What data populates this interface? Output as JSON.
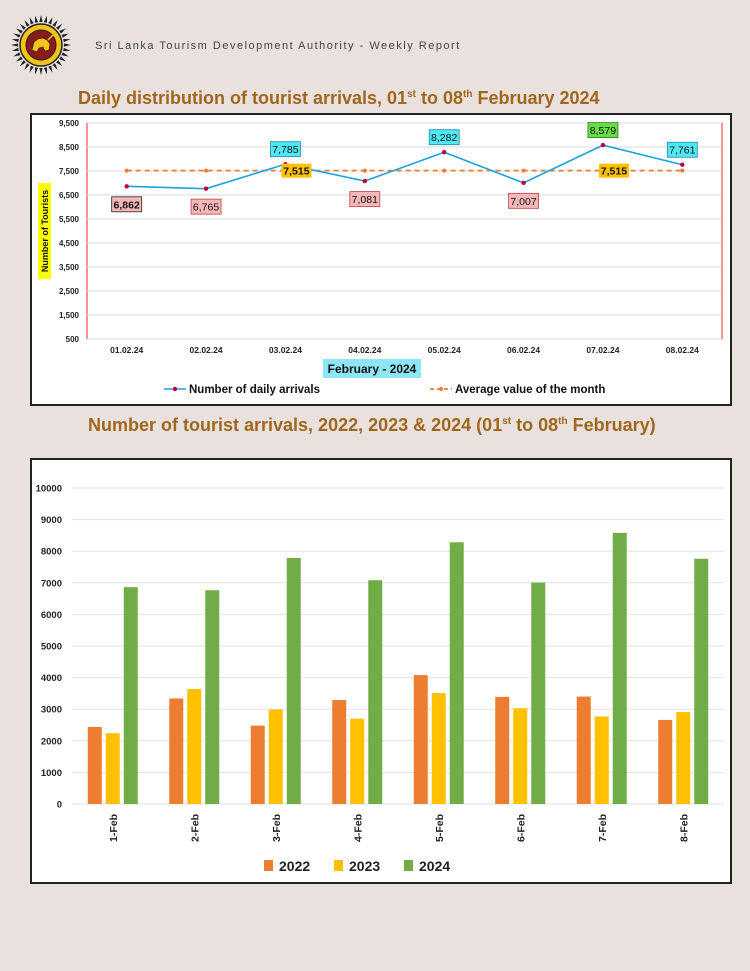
{
  "header": {
    "org_text": "Sri Lanka Tourism Development Authority - Weekly Report",
    "logo_icon": "sri-lanka-lion-emblem-icon"
  },
  "chart1_title": {
    "pre": "Daily distribution of tourist arrivals, 01",
    "sup1": "st",
    "mid": " to 08",
    "sup2": "th",
    "post": " February 2024"
  },
  "chart2_title": {
    "pre": "Number of tourist arrivals, 2022, 2023 & 2024 (01",
    "sup1": "st",
    "mid": " to 08",
    "sup2": "th",
    "post": " February)"
  },
  "chart_data": [
    {
      "type": "line",
      "title": "Daily distribution of tourist arrivals, 01st to 08th February 2024",
      "xlabel": "February  - 2024",
      "ylabel": "Number of Tourists",
      "ylim": [
        500,
        9500
      ],
      "yticks": [
        "9,500",
        "8,500",
        "7,500",
        "6,500",
        "5,500",
        "4,500",
        "3,500",
        "2,500",
        "1,500",
        "500"
      ],
      "ytick_values": [
        9500,
        8500,
        7500,
        6500,
        5500,
        4500,
        3500,
        2500,
        1500,
        500
      ],
      "categories": [
        "01.02.24",
        "02.02.24",
        "03.02.24",
        "04.02.24",
        "05.02.24",
        "06.02.24",
        "07.02.24",
        "08.02.24"
      ],
      "series": [
        {
          "name": "Number of daily arrivals",
          "values": [
            6862,
            6765,
            7785,
            7081,
            8282,
            7007,
            8579,
            7761
          ],
          "labels": [
            "6,862",
            "6,765",
            "7,785",
            "7,081",
            "8,282",
            "7,007",
            "8,579",
            "7,761"
          ],
          "color": "#1aa3e0"
        },
        {
          "name": "Average value of the month",
          "values": [
            7515,
            7515,
            7515,
            7515,
            7515,
            7515,
            7515,
            7515
          ],
          "labels": [
            "7,515",
            "7,515"
          ],
          "color": "#ed7d31"
        }
      ],
      "grid": true,
      "legend": "bottom"
    },
    {
      "type": "bar",
      "title": "Number of tourist arrivals, 2022, 2023 & 2024 (01st to 08th February)",
      "ylim": [
        0,
        10000
      ],
      "yticks": [
        "10000",
        "9000",
        "8000",
        "7000",
        "6000",
        "5000",
        "4000",
        "3000",
        "2000",
        "1000",
        "0"
      ],
      "ytick_values": [
        10000,
        9000,
        8000,
        7000,
        6000,
        5000,
        4000,
        3000,
        2000,
        1000,
        0
      ],
      "categories": [
        "1-Feb",
        "2-Feb",
        "3-Feb",
        "4-Feb",
        "5-Feb",
        "6-Feb",
        "7-Feb",
        "8-Feb"
      ],
      "series": [
        {
          "name": "2022",
          "values": [
            2440,
            3340,
            2480,
            3290,
            4080,
            3390,
            3400,
            2660
          ],
          "color": "#ed7d31"
        },
        {
          "name": "2023",
          "values": [
            2240,
            3640,
            2990,
            2700,
            3510,
            3030,
            2770,
            2910
          ],
          "color": "#ffc000"
        },
        {
          "name": "2024",
          "values": [
            6862,
            6765,
            7785,
            7081,
            8282,
            7007,
            8579,
            7761
          ],
          "color": "#70ad47"
        }
      ],
      "grid": true,
      "legend": "bottom"
    }
  ]
}
